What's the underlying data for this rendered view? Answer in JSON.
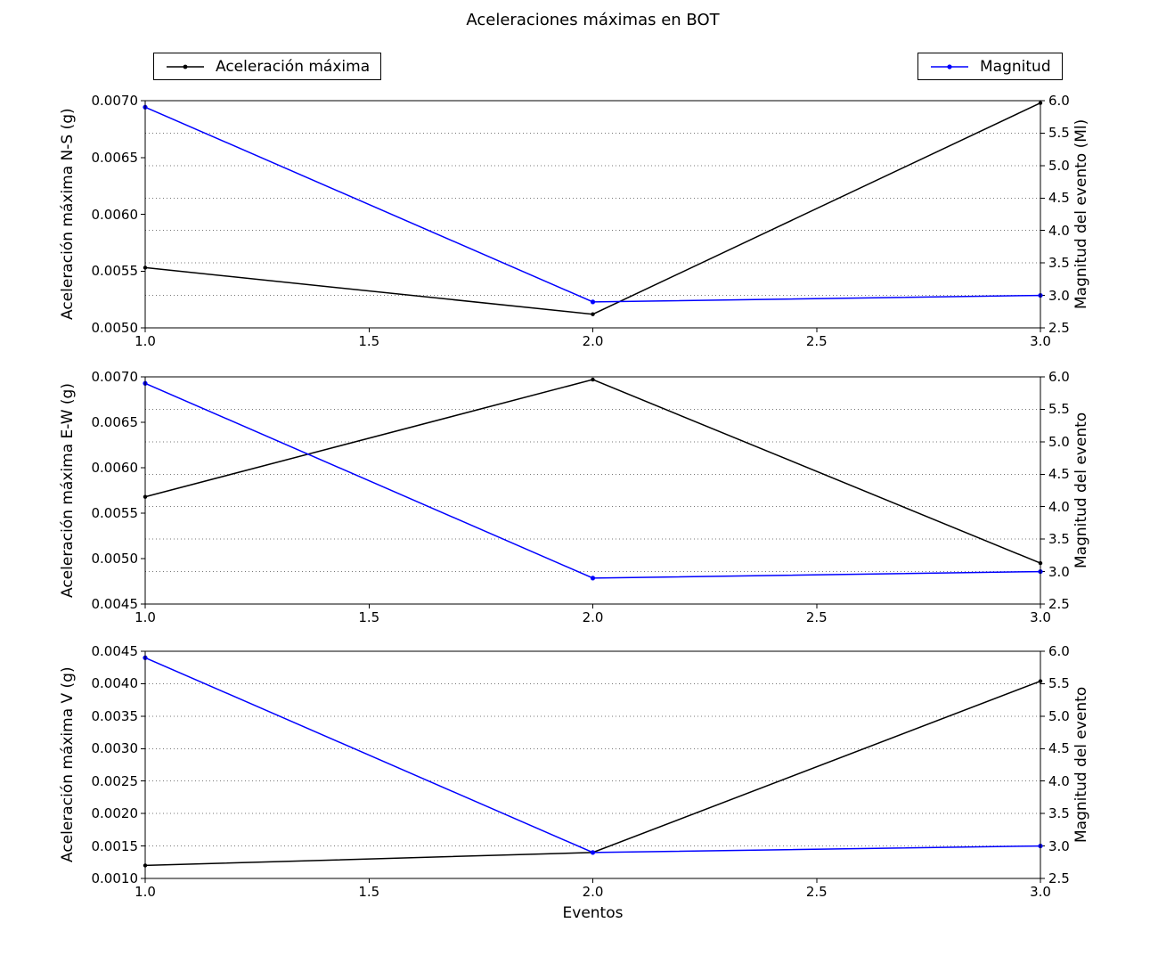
{
  "title": "Aceleraciones máximas en BOT",
  "xlabel": "Eventos",
  "legends": {
    "acceleration": {
      "label": "Aceleración máxima",
      "color": "#000000"
    },
    "magnitude": {
      "label": "Magnitud",
      "color": "#0000ff"
    }
  },
  "colors": {
    "acceleration": "#000000",
    "magnitude": "#0000ff",
    "grid": "#777777",
    "frame": "#000000",
    "background": "#ffffff"
  },
  "chart_data": [
    {
      "type": "line",
      "ylabel_left": "Aceleración máxima N-S (g)",
      "ylabel_right": "Magnitud del evento (Ml)",
      "x": [
        1.0,
        2.0,
        3.0
      ],
      "xlim": [
        1.0,
        3.0
      ],
      "xticks": [
        "1.0",
        "1.5",
        "2.0",
        "2.5",
        "3.0"
      ],
      "ylim_left": [
        0.005,
        0.007
      ],
      "yticks_left": [
        "0.0050",
        "0.0055",
        "0.0060",
        "0.0065",
        "0.0070"
      ],
      "ylim_right": [
        2.5,
        6.0
      ],
      "yticks_right": [
        "2.5",
        "3.0",
        "3.5",
        "4.0",
        "4.5",
        "5.0",
        "5.5",
        "6.0"
      ],
      "grid": {
        "style": "dotted",
        "aligned_to": "right-axis-ticks"
      },
      "series": [
        {
          "name": "Aceleración máxima",
          "axis": "left",
          "color": "#000000",
          "values": [
            0.00553,
            0.00512,
            0.00698
          ]
        },
        {
          "name": "Magnitud",
          "axis": "right",
          "color": "#0000ff",
          "values": [
            5.9,
            2.9,
            3.0
          ]
        }
      ]
    },
    {
      "type": "line",
      "ylabel_left": "Aceleración máxima E-W (g)",
      "ylabel_right": "Magnitud del evento",
      "x": [
        1.0,
        2.0,
        3.0
      ],
      "xlim": [
        1.0,
        3.0
      ],
      "xticks": [
        "1.0",
        "1.5",
        "2.0",
        "2.5",
        "3.0"
      ],
      "ylim_left": [
        0.0045,
        0.007
      ],
      "yticks_left": [
        "0.0045",
        "0.0050",
        "0.0055",
        "0.0060",
        "0.0065",
        "0.0070"
      ],
      "ylim_right": [
        2.5,
        6.0
      ],
      "yticks_right": [
        "2.5",
        "3.0",
        "3.5",
        "4.0",
        "4.5",
        "5.0",
        "5.5",
        "6.0"
      ],
      "grid": {
        "style": "dotted",
        "aligned_to": "right-axis-ticks"
      },
      "series": [
        {
          "name": "Aceleración máxima",
          "axis": "left",
          "color": "#000000",
          "values": [
            0.00568,
            0.00697,
            0.00495
          ]
        },
        {
          "name": "Magnitud",
          "axis": "right",
          "color": "#0000ff",
          "values": [
            5.9,
            2.9,
            3.0
          ]
        }
      ]
    },
    {
      "type": "line",
      "ylabel_left": "Aceleración máxima V (g)",
      "ylabel_right": "Magnitud del evento",
      "x": [
        1.0,
        2.0,
        3.0
      ],
      "xlim": [
        1.0,
        3.0
      ],
      "xticks": [
        "1.0",
        "1.5",
        "2.0",
        "2.5",
        "3.0"
      ],
      "ylim_left": [
        0.001,
        0.0045
      ],
      "yticks_left": [
        "0.0010",
        "0.0015",
        "0.0020",
        "0.0025",
        "0.0030",
        "0.0035",
        "0.0040",
        "0.0045"
      ],
      "ylim_right": [
        2.5,
        6.0
      ],
      "yticks_right": [
        "2.5",
        "3.0",
        "3.5",
        "4.0",
        "4.5",
        "5.0",
        "5.5",
        "6.0"
      ],
      "grid": {
        "style": "dotted",
        "aligned_to": "right-axis-ticks"
      },
      "series": [
        {
          "name": "Aceleración máxima",
          "axis": "left",
          "color": "#000000",
          "values": [
            0.0012,
            0.0014,
            0.00404
          ]
        },
        {
          "name": "Magnitud",
          "axis": "right",
          "color": "#0000ff",
          "values": [
            5.9,
            2.9,
            3.0
          ]
        }
      ]
    }
  ]
}
